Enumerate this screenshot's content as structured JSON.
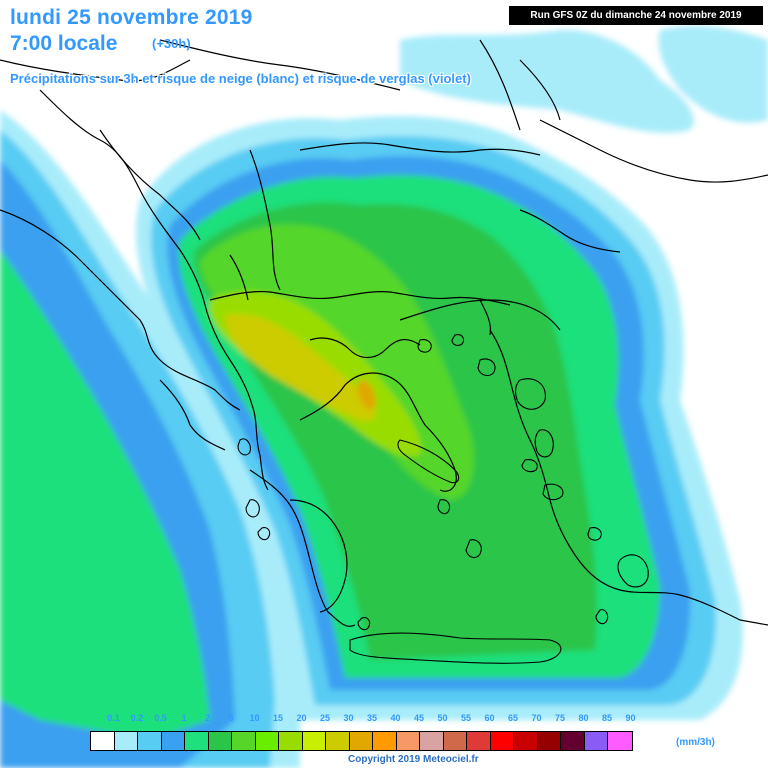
{
  "header": {
    "date_title": "lundi 25 novembre 2019",
    "local_time": "7:00 locale",
    "lead": "(+30h)",
    "subtitle": "Précipitations sur 3h et risque de neige (blanc) et risque de verglas (violet)",
    "run": "Run GFS 0Z du dimanche 24 novembre 2019"
  },
  "legend": {
    "labels": [
      "0.1",
      "0.2",
      "0.5",
      "1",
      "2",
      "5",
      "10",
      "15",
      "20",
      "25",
      "30",
      "35",
      "40",
      "45",
      "50",
      "55",
      "60",
      "65",
      "70",
      "75",
      "80",
      "85",
      "90"
    ],
    "colors": [
      "#ffffff",
      "#a8ecfa",
      "#58ccf3",
      "#3aa0f0",
      "#1ee07c",
      "#2bc548",
      "#55d629",
      "#6aee00",
      "#99dd00",
      "#c8ee00",
      "#cccc00",
      "#e0a800",
      "#ff9a00",
      "#f59a66",
      "#d9a3a3",
      "#d0684a",
      "#e03a38",
      "#ff0000",
      "#c80000",
      "#960000",
      "#640030",
      "#8a5cf5",
      "#ff5cff"
    ],
    "unit": "(mm/3h)"
  },
  "copyright": "Copyright 2019 Meteociel.fr",
  "map": {
    "region": "Balkans / Grèce / Mer Égée",
    "background_color": "#ffffff",
    "rain_colors": {
      "light": "#a8ecfa",
      "moderate_low": "#58ccf3",
      "moderate": "#3aa0f0",
      "medium": "#1ee07c",
      "medium_high": "#2bc548",
      "high": "#55d629",
      "very_high": "#99dd00",
      "peak": "#cccc00",
      "extreme": "#e0a800"
    }
  }
}
